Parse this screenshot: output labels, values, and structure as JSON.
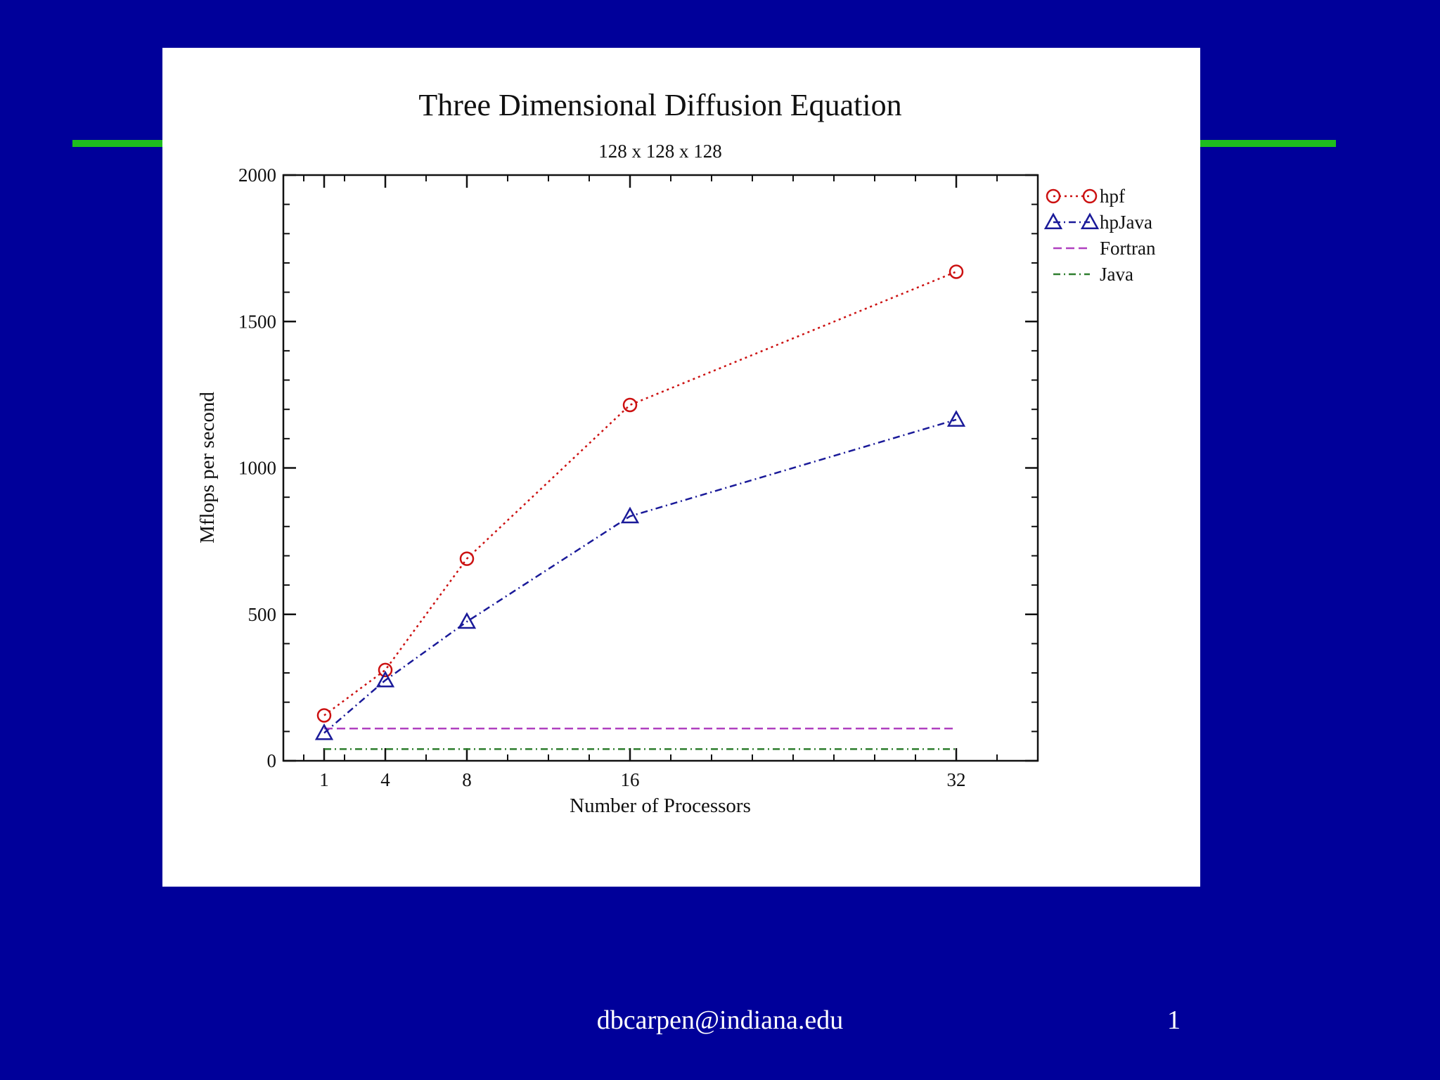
{
  "slide": {
    "footer_email": "dbcarpen@indiana.edu",
    "page_number": "1",
    "background_color": "#00009a",
    "accent_color": "#1ebd1e"
  },
  "chart_data": {
    "type": "line",
    "title": "Three Dimensional Diffusion Equation",
    "subtitle": "128 x 128 x 128",
    "xlabel": "Number of Processors",
    "ylabel": "Mflops per second",
    "xlim": [
      -1,
      36
    ],
    "ylim": [
      0,
      2000
    ],
    "xticks": [
      1,
      4,
      8,
      16,
      32
    ],
    "xtick_labels": [
      "1",
      "4",
      "8",
      "16",
      "32"
    ],
    "yticks": [
      0,
      500,
      1000,
      1500,
      2000
    ],
    "ytick_labels": [
      "0",
      "500",
      "1000",
      "1500",
      "2000"
    ],
    "grid": false,
    "legend_position": "outside-right-top",
    "series": [
      {
        "name": "hpf",
        "marker": "circle",
        "color": "#cc1111",
        "line_style": "dotted",
        "x": [
          1,
          4,
          8,
          16,
          32
        ],
        "y": [
          155,
          310,
          690,
          1215,
          1670
        ]
      },
      {
        "name": "hpJava",
        "marker": "triangle",
        "color": "#1a1a99",
        "line_style": "dash-dot",
        "x": [
          1,
          4,
          8,
          16,
          32
        ],
        "y": [
          95,
          275,
          475,
          835,
          1165
        ]
      },
      {
        "name": "Fortran",
        "marker": "none",
        "color": "#b040c0",
        "line_style": "dashed",
        "x": [
          1,
          32
        ],
        "y": [
          110,
          110
        ]
      },
      {
        "name": "Java",
        "marker": "none",
        "color": "#2e7d2e",
        "line_style": "dash-dot",
        "x": [
          1,
          32
        ],
        "y": [
          40,
          40
        ]
      }
    ]
  }
}
